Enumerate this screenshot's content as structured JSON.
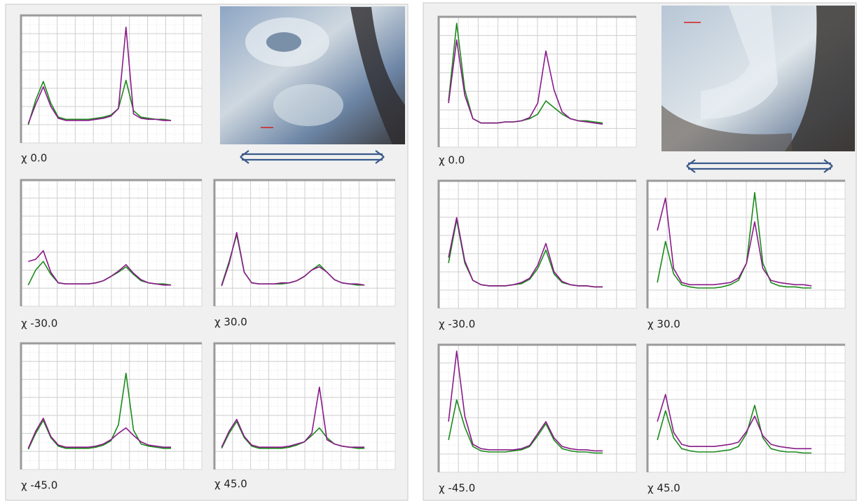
{
  "panels": [
    {
      "charts": [
        {
          "type": "line",
          "label": "χ 0.0",
          "ylim": [
            0,
            100
          ],
          "series": [
            {
              "color": "#1a8a1a",
              "values": [
                5,
                28,
                45,
                25,
                12,
                10,
                10,
                10,
                10,
                11,
                12,
                14,
                20,
                46,
                18,
                12,
                11,
                10,
                10,
                9
              ]
            },
            {
              "color": "#8a1a8a",
              "values": [
                6,
                24,
                40,
                22,
                11,
                9,
                9,
                9,
                9,
                10,
                11,
                13,
                20,
                95,
                15,
                11,
                10,
                10,
                9,
                9
              ]
            }
          ]
        },
        {
          "type": "line",
          "label": "χ -30.0",
          "ylim": [
            0,
            100
          ],
          "series": [
            {
              "color": "#1a8a1a",
              "values": [
                8,
                22,
                30,
                18,
                10,
                9,
                9,
                9,
                9,
                10,
                12,
                16,
                20,
                25,
                18,
                12,
                10,
                9,
                9,
                8
              ]
            },
            {
              "color": "#8a1a8a",
              "values": [
                30,
                32,
                40,
                20,
                10,
                9,
                9,
                9,
                9,
                10,
                12,
                16,
                21,
                27,
                19,
                13,
                10,
                9,
                8,
                8
              ]
            }
          ]
        },
        {
          "type": "line",
          "label": "χ 30.0",
          "ylim": [
            0,
            100
          ],
          "series": [
            {
              "color": "#1a8a1a",
              "values": [
                8,
                30,
                55,
                20,
                10,
                9,
                9,
                9,
                9,
                10,
                12,
                16,
                22,
                27,
                20,
                13,
                10,
                9,
                8,
                8
              ]
            },
            {
              "color": "#8a1a8a",
              "values": [
                7,
                28,
                57,
                20,
                10,
                9,
                9,
                9,
                10,
                10,
                12,
                16,
                22,
                25,
                20,
                13,
                10,
                9,
                9,
                8
              ]
            }
          ]
        },
        {
          "type": "line",
          "label": "χ -45.0",
          "ylim": [
            0,
            100
          ],
          "series": [
            {
              "color": "#1a8a1a",
              "values": [
                7,
                22,
                34,
                18,
                10,
                8,
                8,
                8,
                8,
                9,
                11,
                15,
                30,
                78,
                25,
                12,
                10,
                9,
                8,
                8
              ]
            },
            {
              "color": "#8a1a8a",
              "values": [
                8,
                24,
                36,
                19,
                11,
                9,
                9,
                9,
                9,
                10,
                12,
                16,
                22,
                27,
                20,
                14,
                11,
                10,
                9,
                9
              ]
            }
          ]
        },
        {
          "type": "line",
          "label": "χ 45.0",
          "ylim": [
            0,
            100
          ],
          "series": [
            {
              "color": "#1a8a1a",
              "values": [
                8,
                22,
                33,
                18,
                10,
                8,
                8,
                8,
                8,
                9,
                11,
                14,
                20,
                27,
                18,
                12,
                10,
                9,
                8,
                8
              ]
            },
            {
              "color": "#8a1a8a",
              "values": [
                9,
                24,
                35,
                19,
                11,
                9,
                9,
                9,
                9,
                10,
                12,
                14,
                22,
                65,
                16,
                12,
                10,
                9,
                9,
                9
              ]
            }
          ]
        }
      ]
    },
    {
      "charts": [
        {
          "type": "line",
          "label": "χ 0.0",
          "ylim": [
            0,
            100
          ],
          "series": [
            {
              "color": "#1a8a1a",
              "values": [
                30,
                100,
                40,
                14,
                10,
                10,
                10,
                11,
                11,
                12,
                14,
                18,
                30,
                24,
                18,
                14,
                12,
                12,
                11,
                10
              ]
            },
            {
              "color": "#8a1a8a",
              "values": [
                28,
                85,
                35,
                14,
                10,
                10,
                10,
                11,
                11,
                12,
                15,
                28,
                75,
                40,
                20,
                14,
                12,
                11,
                10,
                9
              ]
            }
          ]
        },
        {
          "type": "line",
          "label": "χ -30.0",
          "ylim": [
            0,
            100
          ],
          "series": [
            {
              "color": "#1a8a1a",
              "values": [
                30,
                70,
                30,
                14,
                10,
                9,
                9,
                9,
                10,
                11,
                15,
                25,
                42,
                20,
                12,
                10,
                9,
                9,
                8,
                8
              ]
            },
            {
              "color": "#8a1a8a",
              "values": [
                35,
                72,
                32,
                14,
                10,
                9,
                9,
                9,
                10,
                12,
                16,
                28,
                48,
                22,
                13,
                10,
                9,
                9,
                8,
                8
              ]
            }
          ]
        },
        {
          "type": "line",
          "label": "χ 30.0",
          "ylim": [
            0,
            100
          ],
          "series": [
            {
              "color": "#1a8a1a",
              "values": [
                12,
                50,
                20,
                10,
                8,
                7,
                7,
                7,
                8,
                10,
                14,
                30,
                95,
                30,
                12,
                9,
                8,
                8,
                7,
                7
              ]
            },
            {
              "color": "#8a1a8a",
              "values": [
                60,
                90,
                25,
                12,
                10,
                10,
                10,
                10,
                11,
                12,
                16,
                30,
                68,
                25,
                14,
                12,
                11,
                10,
                10,
                9
              ]
            }
          ]
        },
        {
          "type": "line",
          "label": "χ -45.0",
          "ylim": [
            0,
            100
          ],
          "series": [
            {
              "color": "#1a8a1a",
              "values": [
                18,
                55,
                30,
                12,
                8,
                7,
                7,
                7,
                8,
                9,
                12,
                22,
                33,
                18,
                10,
                8,
                7,
                7,
                6,
                6
              ]
            },
            {
              "color": "#8a1a8a",
              "values": [
                35,
                100,
                40,
                14,
                10,
                9,
                9,
                9,
                9,
                10,
                13,
                24,
                35,
                20,
                12,
                10,
                9,
                9,
                8,
                8
              ]
            }
          ]
        },
        {
          "type": "line",
          "label": "χ 45.0",
          "ylim": [
            0,
            100
          ],
          "series": [
            {
              "color": "#1a8a1a",
              "values": [
                18,
                45,
                20,
                10,
                8,
                7,
                7,
                7,
                8,
                9,
                12,
                24,
                50,
                20,
                10,
                8,
                7,
                7,
                6,
                6
              ]
            },
            {
              "color": "#8a1a8a",
              "values": [
                35,
                60,
                25,
                14,
                12,
                12,
                12,
                12,
                13,
                14,
                16,
                26,
                40,
                22,
                14,
                12,
                11,
                10,
                10,
                10
              ]
            }
          ]
        }
      ]
    }
  ]
}
